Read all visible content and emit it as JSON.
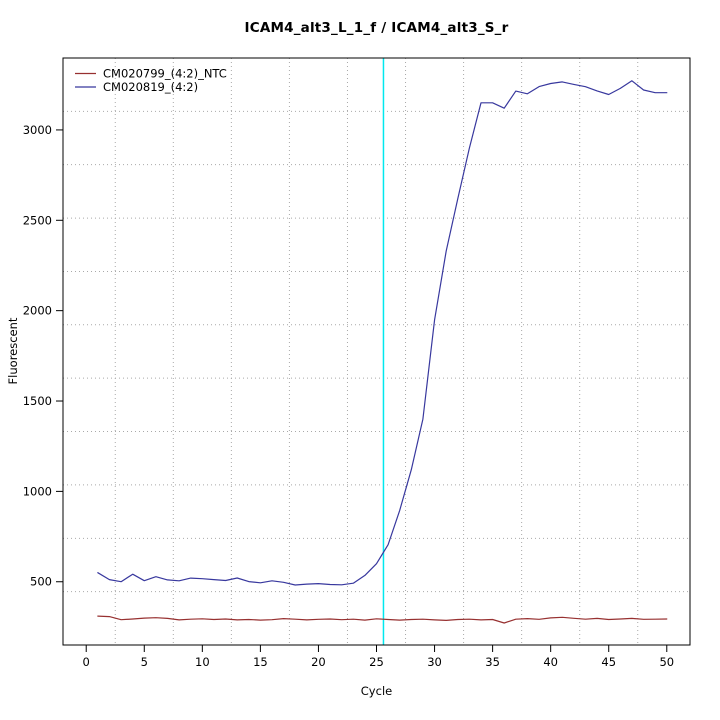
{
  "title": "ICAM4_alt3_L_1_f / ICAM4_alt3_S_r",
  "chart_data": {
    "type": "line",
    "title": "ICAM4_alt3_L_1_f / ICAM4_alt3_S_r",
    "xlabel": "Cycle",
    "ylabel": "Fluorescent",
    "xlim": [
      -2,
      52
    ],
    "ylim": [
      150,
      3398
    ],
    "x_ticks": [
      0,
      5,
      10,
      15,
      20,
      25,
      30,
      35,
      40,
      45,
      50
    ],
    "y_ticks": [
      500,
      1000,
      1500,
      2000,
      2500,
      3000
    ],
    "x": [
      1,
      2,
      3,
      4,
      5,
      6,
      7,
      8,
      9,
      10,
      11,
      12,
      13,
      14,
      15,
      16,
      17,
      18,
      19,
      20,
      21,
      22,
      23,
      24,
      25,
      26,
      27,
      28,
      29,
      30,
      31,
      32,
      33,
      34,
      35,
      36,
      37,
      38,
      39,
      40,
      41,
      42,
      43,
      44,
      45,
      46,
      47,
      48,
      49,
      50
    ],
    "series": [
      {
        "name": "CM020799_(4:2)_NTC",
        "color": "#973030",
        "values": [
          310,
          307,
          290,
          294,
          299,
          301,
          297,
          289,
          293,
          295,
          291,
          294,
          289,
          291,
          288,
          290,
          296,
          293,
          289,
          292,
          294,
          290,
          293,
          288,
          295,
          291,
          288,
          291,
          293,
          289,
          286,
          291,
          293,
          289,
          291,
          272,
          293,
          296,
          292,
          300,
          303,
          298,
          293,
          297,
          291,
          294,
          297,
          292,
          293,
          294
        ]
      },
      {
        "name": "CM020819_(4:2)",
        "color": "#38389E",
        "values": [
          550,
          512,
          500,
          542,
          506,
          528,
          510,
          505,
          520,
          517,
          512,
          507,
          521,
          501,
          494,
          505,
          497,
          482,
          487,
          490,
          485,
          483,
          492,
          535,
          600,
          705,
          895,
          1120,
          1400,
          1950,
          2330,
          2620,
          2900,
          3150,
          3150,
          3120,
          3215,
          3200,
          3240,
          3257,
          3266,
          3252,
          3239,
          3216,
          3196,
          3230,
          3272,
          3221,
          3206,
          3206
        ]
      }
    ],
    "threshold_line": {
      "x": 25.6,
      "color": "#00E8EE"
    },
    "grid": {
      "on": true,
      "style": "dotted",
      "color": "#A9A9A9",
      "vertical_x": [
        2.5,
        7.5,
        12.5,
        17.5,
        22.5,
        27.5,
        32.5,
        37.5,
        42.5,
        47.5
      ],
      "horizontal_y": [
        445,
        740,
        1036,
        1331,
        1627,
        1922,
        2217,
        2512,
        2808,
        3103
      ]
    },
    "legend": {
      "position": "top-left",
      "entries": [
        "CM020799_(4:2)_NTC",
        "CM020819_(4:2)"
      ]
    }
  }
}
